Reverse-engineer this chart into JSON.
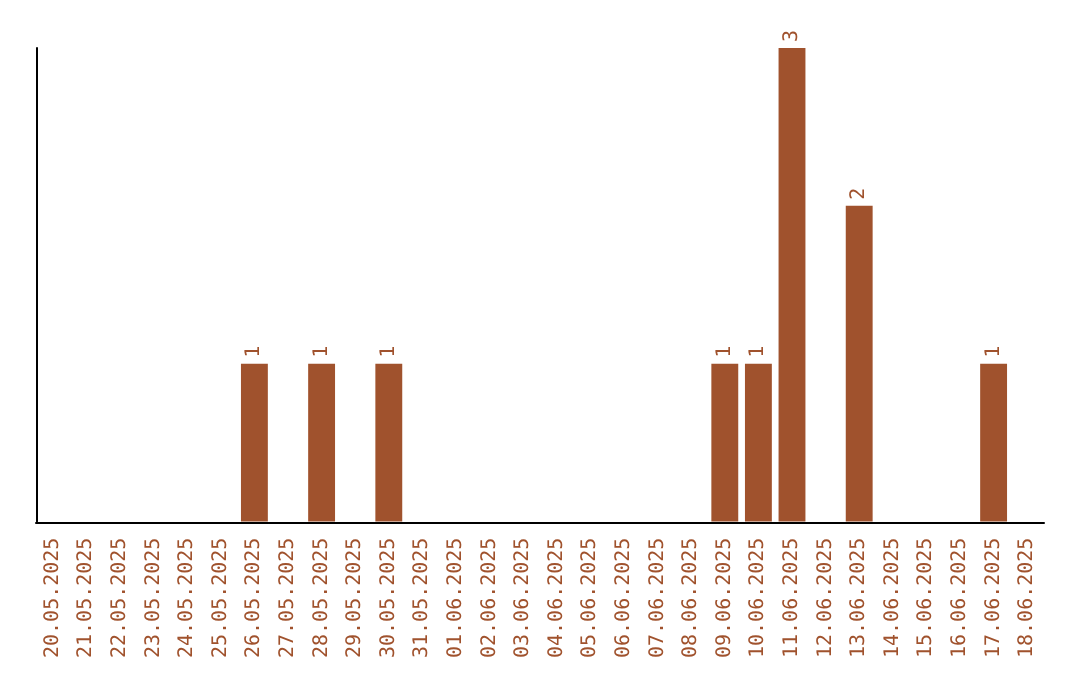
{
  "chart_data": {
    "type": "bar",
    "categories": [
      "20.05.2025",
      "21.05.2025",
      "22.05.2025",
      "23.05.2025",
      "24.05.2025",
      "25.05.2025",
      "26.05.2025",
      "27.05.2025",
      "28.05.2025",
      "29.05.2025",
      "30.05.2025",
      "31.05.2025",
      "01.06.2025",
      "02.06.2025",
      "03.06.2025",
      "04.06.2025",
      "05.06.2025",
      "06.06.2025",
      "07.06.2025",
      "08.06.2025",
      "09.06.2025",
      "10.06.2025",
      "11.06.2025",
      "12.06.2025",
      "13.06.2025",
      "14.06.2025",
      "15.06.2025",
      "16.06.2025",
      "17.06.2025",
      "18.06.2025"
    ],
    "values": [
      0,
      0,
      0,
      0,
      0,
      0,
      1,
      0,
      1,
      0,
      1,
      0,
      0,
      0,
      0,
      0,
      0,
      0,
      0,
      0,
      1,
      1,
      3,
      0,
      2,
      0,
      0,
      0,
      1,
      0
    ],
    "value_labels": [
      null,
      null,
      null,
      null,
      null,
      null,
      "1",
      null,
      "1",
      null,
      "1",
      null,
      null,
      null,
      null,
      null,
      null,
      null,
      null,
      null,
      "1",
      "1",
      "3",
      null,
      "2",
      null,
      null,
      null,
      "1",
      null
    ],
    "color": "#a0522d",
    "grid": false
  }
}
